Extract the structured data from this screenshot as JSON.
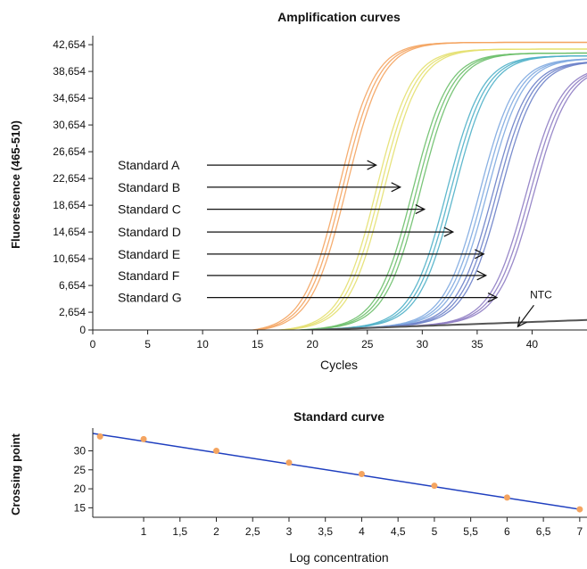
{
  "chart_data": [
    {
      "type": "line",
      "title": "Amplification curves",
      "xlabel": "Cycles",
      "ylabel": "Fluorescence (465-510)",
      "xlim": [
        0,
        45
      ],
      "ylim": [
        0,
        44000
      ],
      "x_ticks": [
        0,
        5,
        10,
        15,
        20,
        25,
        30,
        35,
        40
      ],
      "x_tick_labels": [
        "0",
        "5",
        "10",
        "15",
        "20",
        "25",
        "30",
        "35",
        "40"
      ],
      "y_ticks": [
        0,
        2654,
        6654,
        10654,
        14654,
        18654,
        22654,
        26654,
        30654,
        34654,
        38654,
        42654
      ],
      "y_tick_labels": [
        "0",
        "2,654",
        "6,654",
        "10,654",
        "14,654",
        "18,654",
        "22,654",
        "26,654",
        "30,654",
        "34,654",
        "38,654",
        "42,654"
      ],
      "grid": false,
      "series": [
        {
          "name": "Standard A",
          "color": "#f4a460",
          "midpoint": 22.8,
          "plateau": 43000,
          "arrow_tip_x": 25.8,
          "arrow_tip_y": 24654
        },
        {
          "name": "Standard B",
          "color": "#e4e070",
          "midpoint": 26.2,
          "plateau": 42000,
          "arrow_tip_x": 28.0,
          "arrow_tip_y": 21354
        },
        {
          "name": "Standard C",
          "color": "#6cbf6a",
          "midpoint": 29.5,
          "plateau": 41400,
          "arrow_tip_x": 30.2,
          "arrow_tip_y": 18054
        },
        {
          "name": "Standard D",
          "color": "#4fb0c8",
          "midpoint": 32.6,
          "plateau": 41000,
          "arrow_tip_x": 32.8,
          "arrow_tip_y": 14654
        },
        {
          "name": "Standard E",
          "color": "#7ea9e0",
          "midpoint": 35.6,
          "plateau": 40600,
          "arrow_tip_x": 35.6,
          "arrow_tip_y": 11354
        },
        {
          "name": "Standard F",
          "color": "#6a7fc8",
          "midpoint": 36.8,
          "plateau": 40200,
          "arrow_tip_x": 35.8,
          "arrow_tip_y": 8154
        },
        {
          "name": "Standard G",
          "color": "#8e7cc3",
          "midpoint": 39.8,
          "plateau": 39500,
          "arrow_tip_x": 36.8,
          "arrow_tip_y": 4854
        },
        {
          "name": "NTC",
          "color": "#555555",
          "arrow_tip_x": 38.7,
          "arrow_tip_y": 500
        }
      ],
      "baseline": {
        "start": -1200,
        "end": 1500
      }
    },
    {
      "type": "scatter",
      "title": "Standard curve",
      "xlabel": "Log concentration",
      "ylabel": "Crossing point",
      "xlim": [
        0.3,
        7.1
      ],
      "ylim": [
        12.5,
        36
      ],
      "x_ticks": [
        1,
        1.5,
        2,
        2.5,
        3,
        3.5,
        4,
        4.5,
        5,
        5.5,
        6,
        6.5,
        7
      ],
      "x_tick_labels": [
        "1",
        "1,5",
        "2",
        "2,5",
        "3",
        "3,5",
        "4",
        "4,5",
        "5",
        "5,5",
        "6",
        "6,5",
        "7"
      ],
      "y_ticks": [
        15,
        20,
        25,
        30
      ],
      "y_tick_labels": [
        "15",
        "20",
        "25",
        "30"
      ],
      "grid": false,
      "points": {
        "x": [
          0.4,
          1,
          2,
          3,
          4,
          5,
          6,
          7
        ],
        "y": [
          33.8,
          33.1,
          30.0,
          26.9,
          23.9,
          20.8,
          17.7,
          14.6
        ]
      },
      "fit_line": {
        "x": [
          0.3,
          7.0
        ],
        "y": [
          34.6,
          14.6
        ]
      },
      "point_color": "#f4a460",
      "line_color": "#1f3fbf"
    }
  ]
}
